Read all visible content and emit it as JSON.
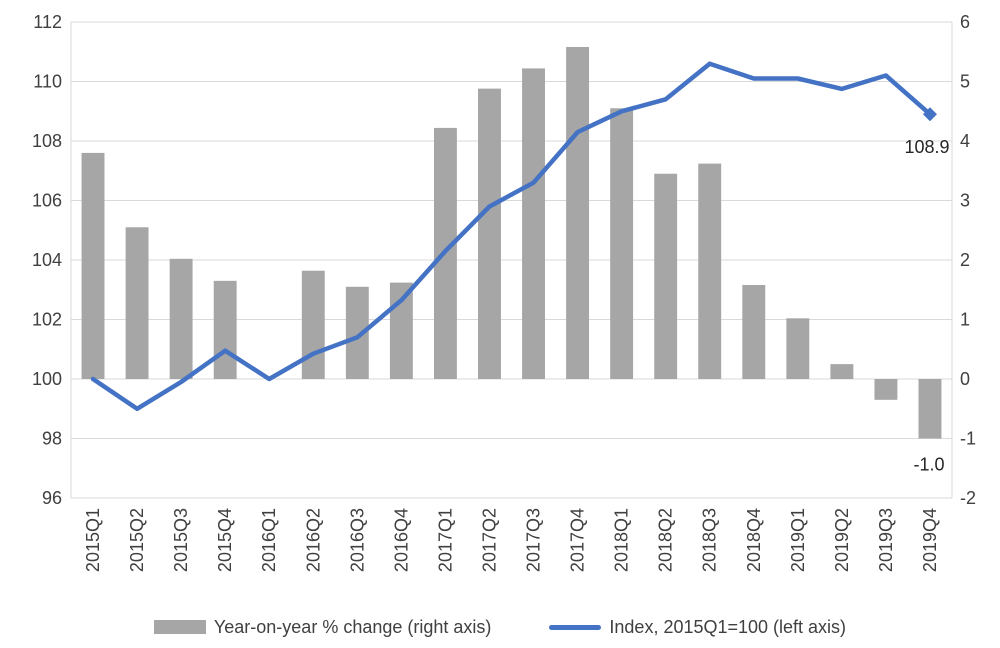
{
  "chart_data": {
    "type": "bar+line",
    "categories": [
      "2015Q1",
      "2015Q2",
      "2015Q3",
      "2015Q4",
      "2016Q1",
      "2016Q2",
      "2016Q3",
      "2016Q4",
      "2017Q1",
      "2017Q2",
      "2017Q3",
      "2017Q4",
      "2018Q1",
      "2018Q2",
      "2018Q3",
      "2018Q4",
      "2019Q1",
      "2019Q2",
      "2019Q3",
      "2019Q4"
    ],
    "bar_series": {
      "name": "Year-on-year % change (right axis)",
      "axis": "right",
      "color": "#A6A6A6",
      "values": [
        3.8,
        2.55,
        2.02,
        1.65,
        0.0,
        1.82,
        1.55,
        1.62,
        4.22,
        4.88,
        5.22,
        5.58,
        4.55,
        3.45,
        3.62,
        1.58,
        1.02,
        0.25,
        -0.35,
        -1.0
      ]
    },
    "line_series": {
      "name": "Index, 2015Q1=100 (left axis)",
      "axis": "left",
      "color": "#4472C4",
      "values": [
        100.0,
        99.0,
        99.9,
        100.95,
        100.0,
        100.85,
        101.4,
        102.65,
        104.3,
        105.8,
        106.6,
        108.3,
        109.0,
        109.4,
        110.6,
        110.1,
        110.1,
        109.75,
        110.2,
        108.9
      ]
    },
    "left_axis": {
      "ticks": [
        "96",
        "98",
        "100",
        "102",
        "104",
        "106",
        "108",
        "110",
        "112"
      ],
      "min": 96,
      "max": 112
    },
    "right_axis": {
      "ticks": [
        "-2",
        "-1",
        "0",
        "1",
        "2",
        "3",
        "4",
        "5",
        "6"
      ],
      "min": -2,
      "max": 6
    },
    "data_labels": {
      "last_index": "108.9",
      "last_change": "-1.0"
    },
    "grid": true,
    "legend_position": "bottom"
  }
}
